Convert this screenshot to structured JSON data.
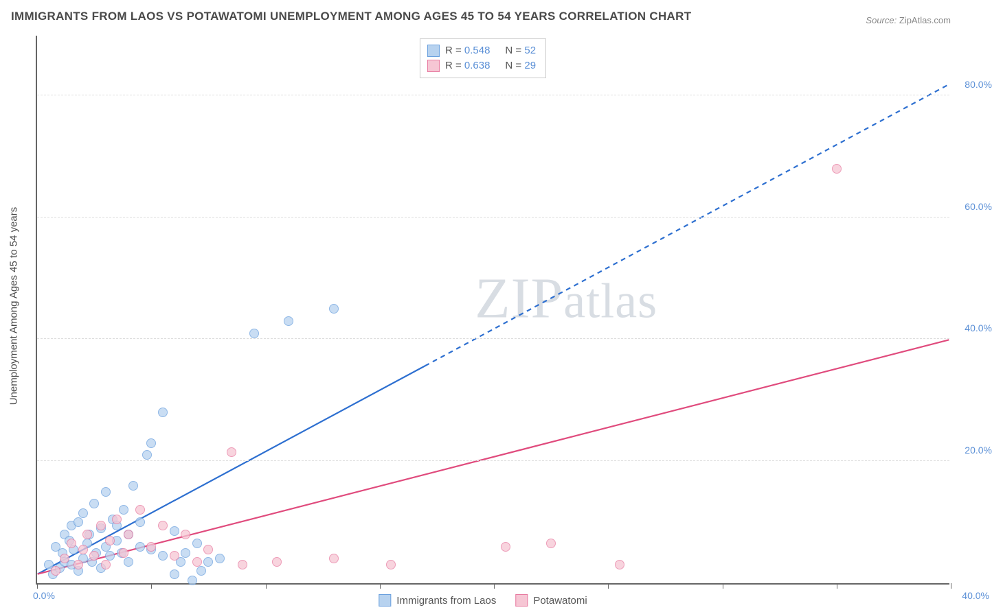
{
  "title": "IMMIGRANTS FROM LAOS VS POTAWATOMI UNEMPLOYMENT AMONG AGES 45 TO 54 YEARS CORRELATION CHART",
  "source_label": "Source:",
  "source_value": "ZipAtlas.com",
  "watermark_a": "ZIP",
  "watermark_b": "atlas",
  "ylabel": "Unemployment Among Ages 45 to 54 years",
  "chart": {
    "type": "scatter",
    "background_color": "#ffffff",
    "grid_color": "#dddddd",
    "axis_color": "#666666",
    "tick_label_color": "#5a8fd6",
    "xlim": [
      0,
      40
    ],
    "ylim": [
      0,
      90
    ],
    "xtick_positions": [
      0,
      5,
      10,
      15,
      20,
      25,
      30,
      35,
      40
    ],
    "xticks_labels": {
      "0": "0.0%",
      "40": "40.0%"
    },
    "ytick_positions": [
      20,
      40,
      60,
      80
    ],
    "ytick_labels": [
      "20.0%",
      "40.0%",
      "60.0%",
      "80.0%"
    ],
    "marker_size": 14,
    "series": [
      {
        "name": "Immigrants from Laos",
        "fill": "#b7d2ef",
        "stroke": "#6aa0de",
        "r_label": "R =",
        "r_value": "0.548",
        "n_label": "N =",
        "n_value": "52",
        "line_color": "#2d6fd0",
        "line_width": 2.2,
        "line_solid_to_x": 17,
        "line_y_at_0": 1.5,
        "line_y_at_40": 82,
        "points": [
          [
            0.5,
            3
          ],
          [
            0.7,
            1.5
          ],
          [
            0.8,
            6
          ],
          [
            1.0,
            2.5
          ],
          [
            1.1,
            5
          ],
          [
            1.2,
            8
          ],
          [
            1.2,
            3.5
          ],
          [
            1.4,
            7
          ],
          [
            1.5,
            3
          ],
          [
            1.5,
            9.5
          ],
          [
            1.6,
            5.5
          ],
          [
            1.8,
            2
          ],
          [
            1.8,
            10
          ],
          [
            2.0,
            4
          ],
          [
            2.0,
            11.5
          ],
          [
            2.2,
            6.5
          ],
          [
            2.3,
            8
          ],
          [
            2.4,
            3.5
          ],
          [
            2.5,
            13
          ],
          [
            2.6,
            5
          ],
          [
            2.8,
            2.5
          ],
          [
            2.8,
            9
          ],
          [
            3.0,
            6
          ],
          [
            3.0,
            15
          ],
          [
            3.2,
            4.5
          ],
          [
            3.3,
            10.5
          ],
          [
            3.5,
            7
          ],
          [
            3.5,
            9.5
          ],
          [
            3.7,
            5
          ],
          [
            3.8,
            12
          ],
          [
            4.0,
            8
          ],
          [
            4.0,
            3.5
          ],
          [
            4.2,
            16
          ],
          [
            4.5,
            6
          ],
          [
            4.5,
            10
          ],
          [
            4.8,
            21
          ],
          [
            5.0,
            5.5
          ],
          [
            5.0,
            23
          ],
          [
            5.5,
            4.5
          ],
          [
            5.5,
            28
          ],
          [
            6.0,
            1.5
          ],
          [
            6.0,
            8.5
          ],
          [
            6.3,
            3.5
          ],
          [
            6.5,
            5
          ],
          [
            6.8,
            0.5
          ],
          [
            7.0,
            6.5
          ],
          [
            7.2,
            2
          ],
          [
            7.5,
            3.5
          ],
          [
            8.0,
            4
          ],
          [
            9.5,
            41
          ],
          [
            13.0,
            45
          ],
          [
            11.0,
            43
          ]
        ]
      },
      {
        "name": "Potawatomi",
        "fill": "#f6c6d4",
        "stroke": "#e77aa0",
        "r_label": "R =",
        "r_value": "0.638",
        "n_label": "N =",
        "n_value": "29",
        "line_color": "#e04b7d",
        "line_width": 2.2,
        "line_solid_to_x": 40,
        "line_y_at_0": 1.5,
        "line_y_at_40": 40,
        "points": [
          [
            0.8,
            2
          ],
          [
            1.2,
            4
          ],
          [
            1.5,
            6.5
          ],
          [
            1.8,
            3
          ],
          [
            2.0,
            5.5
          ],
          [
            2.2,
            8
          ],
          [
            2.5,
            4.5
          ],
          [
            2.8,
            9.5
          ],
          [
            3.0,
            3
          ],
          [
            3.2,
            7
          ],
          [
            3.5,
            10.5
          ],
          [
            3.8,
            5
          ],
          [
            4.0,
            8
          ],
          [
            4.5,
            12
          ],
          [
            5.0,
            6
          ],
          [
            5.5,
            9.5
          ],
          [
            6.0,
            4.5
          ],
          [
            6.5,
            8
          ],
          [
            7.0,
            3.5
          ],
          [
            7.5,
            5.5
          ],
          [
            8.5,
            21.5
          ],
          [
            9.0,
            3
          ],
          [
            10.5,
            3.5
          ],
          [
            13.0,
            4
          ],
          [
            15.5,
            3
          ],
          [
            20.5,
            6
          ],
          [
            22.5,
            6.5
          ],
          [
            25.5,
            3
          ],
          [
            35.0,
            68
          ]
        ]
      }
    ]
  }
}
